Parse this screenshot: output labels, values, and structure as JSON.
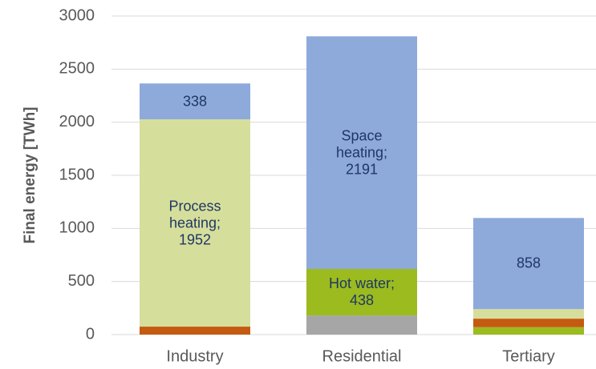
{
  "chart_data": {
    "type": "stacked_bar",
    "y_label": "Final energy [TWh]",
    "categories": [
      "Industry",
      "Residential",
      "Tertiary"
    ],
    "series": [
      {
        "color": "#a6a6a6",
        "values": [
          0,
          180,
          0
        ],
        "value_labels": [
          null,
          null,
          null
        ]
      },
      {
        "color": "#9bbb1f",
        "values": [
          0,
          438,
          70
        ],
        "value_labels": [
          null,
          "Hot water; 438",
          null
        ]
      },
      {
        "color": "#c55a11",
        "values": [
          75,
          0,
          80
        ],
        "value_labels": [
          null,
          null,
          null
        ]
      },
      {
        "color": "#d6de9c",
        "values": [
          1952,
          0,
          90
        ],
        "value_labels": [
          "Process heating; 1952",
          null,
          null
        ]
      },
      {
        "color": "#8eaadb",
        "values": [
          338,
          2191,
          858
        ],
        "value_labels": [
          "338",
          "Space heating; 2191",
          "858"
        ]
      }
    ],
    "ylim": [
      0,
      3000
    ],
    "yticks": [
      0,
      500,
      1000,
      1500,
      2000,
      2500,
      3000
    ],
    "grid": true
  }
}
